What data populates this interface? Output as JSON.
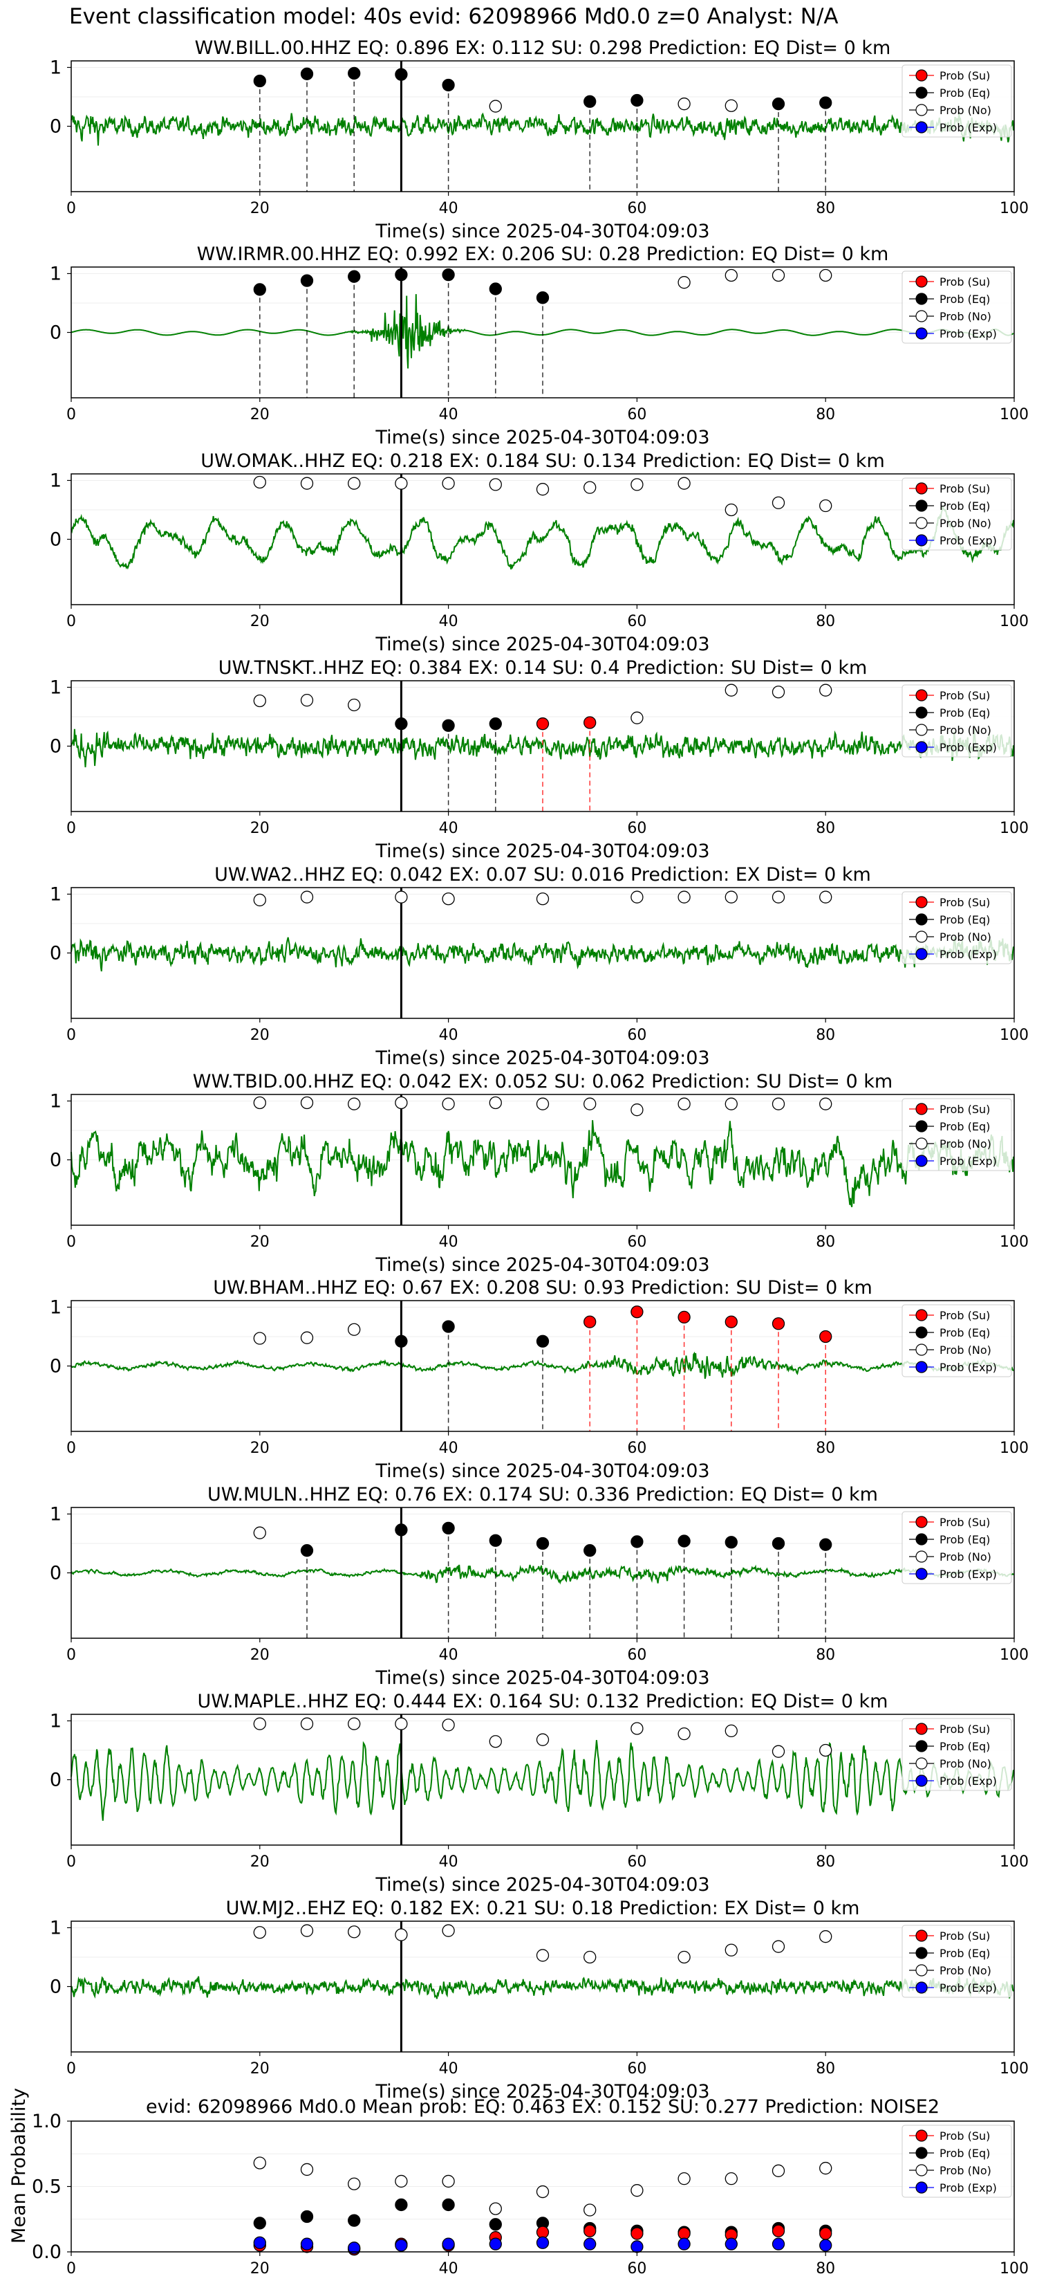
{
  "figure": {
    "suptitle": "Event classification model: 40s evid: 62098966 Md0.0 z=0 Analyst: N/A",
    "xlabel": "Time(s) since 2025-04-30T04:09:03",
    "xticks": [
      "0",
      "20",
      "40",
      "60",
      "80",
      "100"
    ],
    "legend": [
      "Prob (Su)",
      "Prob (Eq)",
      "Prob (No)",
      "Prob (Exp)"
    ],
    "colors": {
      "waveform": "#008000",
      "su": "#ff0000",
      "eq": "#000000",
      "no": "#ffffff",
      "exp": "#0000ff",
      "su_line": "#ff0000",
      "eq_line": "#000000",
      "pick_line": "#000000"
    }
  },
  "chart_data": [
    {
      "type": "line",
      "title": "WW.BILL.00.HHZ   EQ: 0.896  EX: 0.112  SU: 0.298   Prediction: EQ    Dist= 0 km",
      "yticks": [
        "1",
        "0"
      ],
      "xlim": [
        0,
        100
      ],
      "pick_time": 35,
      "waveform": {
        "style": "noisy",
        "amp": 0.28
      },
      "points": [
        {
          "t": 20,
          "p": 0.77,
          "c": "eq"
        },
        {
          "t": 25,
          "p": 0.89,
          "c": "eq"
        },
        {
          "t": 30,
          "p": 0.9,
          "c": "eq"
        },
        {
          "t": 35,
          "p": 0.88,
          "c": "eq"
        },
        {
          "t": 40,
          "p": 0.7,
          "c": "eq"
        },
        {
          "t": 45,
          "p": 0.34,
          "c": "no"
        },
        {
          "t": 55,
          "p": 0.42,
          "c": "eq"
        },
        {
          "t": 60,
          "p": 0.44,
          "c": "eq"
        },
        {
          "t": 65,
          "p": 0.38,
          "c": "no"
        },
        {
          "t": 70,
          "p": 0.35,
          "c": "no"
        },
        {
          "t": 75,
          "p": 0.38,
          "c": "eq"
        },
        {
          "t": 80,
          "p": 0.4,
          "c": "eq"
        }
      ]
    },
    {
      "type": "line",
      "title": "WW.IRMR.00.HHZ   EQ: 0.992  EX: 0.206  SU: 0.28   Prediction: EQ    Dist= 0 km",
      "yticks": [
        "1",
        "0"
      ],
      "xlim": [
        0,
        100
      ],
      "pick_time": 35,
      "waveform": {
        "style": "event",
        "amp": 0.05
      },
      "points": [
        {
          "t": 20,
          "p": 0.73,
          "c": "eq"
        },
        {
          "t": 25,
          "p": 0.88,
          "c": "eq"
        },
        {
          "t": 30,
          "p": 0.95,
          "c": "eq"
        },
        {
          "t": 35,
          "p": 0.98,
          "c": "eq"
        },
        {
          "t": 40,
          "p": 0.98,
          "c": "eq"
        },
        {
          "t": 45,
          "p": 0.74,
          "c": "eq"
        },
        {
          "t": 50,
          "p": 0.59,
          "c": "eq"
        },
        {
          "t": 65,
          "p": 0.85,
          "c": "no"
        },
        {
          "t": 70,
          "p": 0.97,
          "c": "no"
        },
        {
          "t": 75,
          "p": 0.97,
          "c": "no"
        },
        {
          "t": 80,
          "p": 0.97,
          "c": "no"
        }
      ]
    },
    {
      "type": "line",
      "title": "UW.OMAK..HHZ   EQ: 0.218  EX: 0.184  SU: 0.134   Prediction: EQ    Dist= 0 km",
      "yticks": [
        "1",
        "0"
      ],
      "xlim": [
        0,
        100
      ],
      "pick_time": 35,
      "waveform": {
        "style": "lowfreq",
        "amp": 0.45
      },
      "points": [
        {
          "t": 20,
          "p": 0.97,
          "c": "no"
        },
        {
          "t": 25,
          "p": 0.95,
          "c": "no"
        },
        {
          "t": 30,
          "p": 0.95,
          "c": "no"
        },
        {
          "t": 35,
          "p": 0.95,
          "c": "no"
        },
        {
          "t": 40,
          "p": 0.95,
          "c": "no"
        },
        {
          "t": 45,
          "p": 0.93,
          "c": "no"
        },
        {
          "t": 50,
          "p": 0.85,
          "c": "no"
        },
        {
          "t": 55,
          "p": 0.88,
          "c": "no"
        },
        {
          "t": 60,
          "p": 0.93,
          "c": "no"
        },
        {
          "t": 65,
          "p": 0.95,
          "c": "no"
        },
        {
          "t": 70,
          "p": 0.5,
          "c": "no"
        },
        {
          "t": 75,
          "p": 0.62,
          "c": "no"
        },
        {
          "t": 80,
          "p": 0.57,
          "c": "no"
        }
      ]
    },
    {
      "type": "line",
      "title": "UW.TNSKT..HHZ   EQ: 0.384  EX: 0.14  SU: 0.4   Prediction: SU    Dist= 0 km",
      "yticks": [
        "1",
        "0"
      ],
      "xlim": [
        0,
        100
      ],
      "pick_time": 35,
      "waveform": {
        "style": "noisy",
        "amp": 0.32
      },
      "points": [
        {
          "t": 20,
          "p": 0.77,
          "c": "no"
        },
        {
          "t": 25,
          "p": 0.78,
          "c": "no"
        },
        {
          "t": 30,
          "p": 0.7,
          "c": "no"
        },
        {
          "t": 35,
          "p": 0.38,
          "c": "eq"
        },
        {
          "t": 40,
          "p": 0.35,
          "c": "eq"
        },
        {
          "t": 45,
          "p": 0.38,
          "c": "eq"
        },
        {
          "t": 50,
          "p": 0.38,
          "c": "su"
        },
        {
          "t": 55,
          "p": 0.4,
          "c": "su"
        },
        {
          "t": 60,
          "p": 0.48,
          "c": "no"
        },
        {
          "t": 70,
          "p": 0.95,
          "c": "no"
        },
        {
          "t": 75,
          "p": 0.92,
          "c": "no"
        },
        {
          "t": 80,
          "p": 0.95,
          "c": "no"
        }
      ]
    },
    {
      "type": "line",
      "title": "UW.WA2..HHZ   EQ: 0.042  EX: 0.07  SU: 0.016   Prediction: EX    Dist= 0 km",
      "yticks": [
        "1",
        "0"
      ],
      "xlim": [
        0,
        100
      ],
      "pick_time": 35,
      "waveform": {
        "style": "noisy",
        "amp": 0.3
      },
      "points": [
        {
          "t": 20,
          "p": 0.9,
          "c": "no"
        },
        {
          "t": 25,
          "p": 0.95,
          "c": "no"
        },
        {
          "t": 35,
          "p": 0.95,
          "c": "no"
        },
        {
          "t": 40,
          "p": 0.92,
          "c": "no"
        },
        {
          "t": 50,
          "p": 0.92,
          "c": "no"
        },
        {
          "t": 60,
          "p": 0.95,
          "c": "no"
        },
        {
          "t": 65,
          "p": 0.95,
          "c": "no"
        },
        {
          "t": 70,
          "p": 0.95,
          "c": "no"
        },
        {
          "t": 75,
          "p": 0.95,
          "c": "no"
        },
        {
          "t": 80,
          "p": 0.95,
          "c": "no"
        }
      ]
    },
    {
      "type": "line",
      "title": "WW.TBID.00.HHZ   EQ: 0.042  EX: 0.052  SU: 0.062   Prediction: SU    Dist= 0 km",
      "yticks": [
        "1",
        "0"
      ],
      "xlim": [
        0,
        100
      ],
      "pick_time": 35,
      "waveform": {
        "style": "midfreq",
        "amp": 0.55
      },
      "points": [
        {
          "t": 20,
          "p": 0.97,
          "c": "no"
        },
        {
          "t": 25,
          "p": 0.97,
          "c": "no"
        },
        {
          "t": 30,
          "p": 0.95,
          "c": "no"
        },
        {
          "t": 35,
          "p": 0.97,
          "c": "no"
        },
        {
          "t": 40,
          "p": 0.95,
          "c": "no"
        },
        {
          "t": 45,
          "p": 0.97,
          "c": "no"
        },
        {
          "t": 50,
          "p": 0.95,
          "c": "no"
        },
        {
          "t": 55,
          "p": 0.95,
          "c": "no"
        },
        {
          "t": 60,
          "p": 0.85,
          "c": "no"
        },
        {
          "t": 65,
          "p": 0.95,
          "c": "no"
        },
        {
          "t": 70,
          "p": 0.95,
          "c": "no"
        },
        {
          "t": 75,
          "p": 0.95,
          "c": "no"
        },
        {
          "t": 80,
          "p": 0.95,
          "c": "no"
        }
      ]
    },
    {
      "type": "line",
      "title": "UW.BHAM..HHZ   EQ: 0.67  EX: 0.208  SU: 0.93   Prediction: SU    Dist= 0 km",
      "yticks": [
        "1",
        "0"
      ],
      "xlim": [
        0,
        100
      ],
      "pick_time": 35,
      "waveform": {
        "style": "burst",
        "amp": 0.12
      },
      "points": [
        {
          "t": 20,
          "p": 0.47,
          "c": "no"
        },
        {
          "t": 25,
          "p": 0.48,
          "c": "no"
        },
        {
          "t": 30,
          "p": 0.62,
          "c": "no"
        },
        {
          "t": 35,
          "p": 0.42,
          "c": "eq"
        },
        {
          "t": 40,
          "p": 0.67,
          "c": "eq"
        },
        {
          "t": 50,
          "p": 0.42,
          "c": "eq"
        },
        {
          "t": 55,
          "p": 0.75,
          "c": "su"
        },
        {
          "t": 60,
          "p": 0.92,
          "c": "su"
        },
        {
          "t": 65,
          "p": 0.83,
          "c": "su"
        },
        {
          "t": 70,
          "p": 0.75,
          "c": "su"
        },
        {
          "t": 75,
          "p": 0.72,
          "c": "su"
        },
        {
          "t": 80,
          "p": 0.5,
          "c": "su"
        }
      ]
    },
    {
      "type": "line",
      "title": "UW.MULN..HHZ   EQ: 0.76  EX: 0.174  SU: 0.336   Prediction: EQ    Dist= 0 km",
      "yticks": [
        "1",
        "0"
      ],
      "xlim": [
        0,
        100
      ],
      "pick_time": 35,
      "waveform": {
        "style": "burst2",
        "amp": 0.1
      },
      "points": [
        {
          "t": 20,
          "p": 0.68,
          "c": "no"
        },
        {
          "t": 25,
          "p": 0.38,
          "c": "eq"
        },
        {
          "t": 35,
          "p": 0.73,
          "c": "eq"
        },
        {
          "t": 40,
          "p": 0.76,
          "c": "eq"
        },
        {
          "t": 45,
          "p": 0.55,
          "c": "eq"
        },
        {
          "t": 50,
          "p": 0.5,
          "c": "eq"
        },
        {
          "t": 55,
          "p": 0.38,
          "c": "eq"
        },
        {
          "t": 60,
          "p": 0.53,
          "c": "eq"
        },
        {
          "t": 65,
          "p": 0.54,
          "c": "eq"
        },
        {
          "t": 70,
          "p": 0.52,
          "c": "eq"
        },
        {
          "t": 75,
          "p": 0.5,
          "c": "eq"
        },
        {
          "t": 80,
          "p": 0.48,
          "c": "eq"
        }
      ]
    },
    {
      "type": "line",
      "title": "UW.MAPLE..HHZ   EQ: 0.444  EX: 0.164  SU: 0.132   Prediction: EQ    Dist= 0 km",
      "yticks": [
        "1",
        "0"
      ],
      "xlim": [
        0,
        100
      ],
      "pick_time": 35,
      "waveform": {
        "style": "oscill",
        "amp": 0.5
      },
      "points": [
        {
          "t": 20,
          "p": 0.95,
          "c": "no"
        },
        {
          "t": 25,
          "p": 0.95,
          "c": "no"
        },
        {
          "t": 30,
          "p": 0.95,
          "c": "no"
        },
        {
          "t": 35,
          "p": 0.95,
          "c": "no"
        },
        {
          "t": 40,
          "p": 0.93,
          "c": "no"
        },
        {
          "t": 45,
          "p": 0.65,
          "c": "no"
        },
        {
          "t": 50,
          "p": 0.68,
          "c": "no"
        },
        {
          "t": 60,
          "p": 0.87,
          "c": "no"
        },
        {
          "t": 65,
          "p": 0.78,
          "c": "no"
        },
        {
          "t": 70,
          "p": 0.83,
          "c": "no"
        },
        {
          "t": 75,
          "p": 0.48,
          "c": "no"
        },
        {
          "t": 80,
          "p": 0.5,
          "c": "no"
        }
      ]
    },
    {
      "type": "line",
      "title": "UW.MJ2..EHZ   EQ: 0.182  EX: 0.21  SU: 0.18   Prediction: EX    Dist= 0 km",
      "yticks": [
        "1",
        "0"
      ],
      "xlim": [
        0,
        100
      ],
      "pick_time": 35,
      "waveform": {
        "style": "noisy",
        "amp": 0.22
      },
      "points": [
        {
          "t": 20,
          "p": 0.92,
          "c": "no"
        },
        {
          "t": 25,
          "p": 0.95,
          "c": "no"
        },
        {
          "t": 30,
          "p": 0.93,
          "c": "no"
        },
        {
          "t": 35,
          "p": 0.88,
          "c": "no"
        },
        {
          "t": 40,
          "p": 0.95,
          "c": "no"
        },
        {
          "t": 50,
          "p": 0.53,
          "c": "no"
        },
        {
          "t": 55,
          "p": 0.5,
          "c": "no"
        },
        {
          "t": 65,
          "p": 0.5,
          "c": "no"
        },
        {
          "t": 70,
          "p": 0.62,
          "c": "no"
        },
        {
          "t": 75,
          "p": 0.68,
          "c": "no"
        },
        {
          "t": 80,
          "p": 0.85,
          "c": "no"
        }
      ]
    },
    {
      "type": "scatter",
      "title": "evid: 62098966  Md0.0   Mean prob:   EQ: 0.463  EX: 0.152  SU: 0.277   Prediction: NOISE2",
      "ylabel": "Mean Probability",
      "yticks": [
        "1.0",
        "0.5",
        "0.0"
      ],
      "xlim": [
        0,
        100
      ],
      "ylim": [
        0,
        1
      ],
      "x": [
        20,
        25,
        30,
        35,
        40,
        45,
        50,
        55,
        60,
        65,
        70,
        75,
        80
      ],
      "series": [
        {
          "name": "Prob (No)",
          "c": "no",
          "values": [
            0.68,
            0.63,
            0.52,
            0.54,
            0.54,
            0.33,
            0.46,
            0.32,
            0.47,
            0.56,
            0.56,
            0.62,
            0.64
          ]
        },
        {
          "name": "Prob (Eq)",
          "c": "eq",
          "values": [
            0.22,
            0.27,
            0.24,
            0.36,
            0.36,
            0.21,
            0.22,
            0.18,
            0.16,
            0.15,
            0.15,
            0.18,
            0.16
          ]
        },
        {
          "name": "Prob (Su)",
          "c": "su",
          "values": [
            0.05,
            0.04,
            0.02,
            0.06,
            0.05,
            0.11,
            0.15,
            0.16,
            0.14,
            0.14,
            0.13,
            0.16,
            0.14
          ]
        },
        {
          "name": "Prob (Exp)",
          "c": "exp",
          "values": [
            0.07,
            0.06,
            0.03,
            0.05,
            0.06,
            0.06,
            0.07,
            0.06,
            0.04,
            0.06,
            0.06,
            0.06,
            0.05
          ]
        }
      ]
    }
  ]
}
